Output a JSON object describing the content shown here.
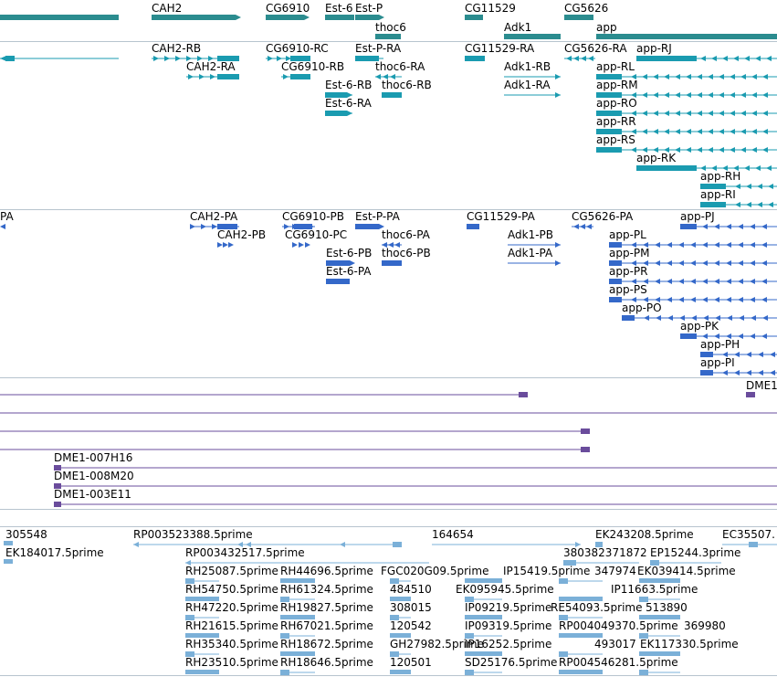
{
  "colors": {
    "gene": "#2b8c8f",
    "transcript": "#1a9bb0",
    "protein": "#3468c9",
    "clone": "#6a4c9c",
    "est": "#7bb0d8",
    "separator": "#b7c4ce"
  },
  "tracks": {
    "genes": {
      "labels": [
        "CAH2",
        "CG6910",
        "Est-6",
        "Est-P",
        "thoc6",
        "CG11529",
        "Adk1",
        "CG5626",
        "app"
      ]
    },
    "transcripts": {
      "labels": [
        "CAH2-RB",
        "CAH2-RA",
        "CG6910-RC",
        "CG6910-RB",
        "Est-P-RA",
        "thoc6-RA",
        "Est-6-RB",
        "thoc6-RB",
        "Est-6-RA",
        "CG11529-RA",
        "Adk1-RB",
        "Adk1-RA",
        "CG5626-RA",
        "app-RJ",
        "app-RL",
        "app-RM",
        "app-RO",
        "app-RR",
        "app-RS",
        "app-RK",
        "app-RH",
        "app-RI"
      ]
    },
    "proteins": {
      "labels": [
        "PA",
        "CAH2-PA",
        "CAH2-PB",
        "CG6910-PB",
        "CG6910-PC",
        "Est-P-PA",
        "thoc6-PA",
        "Est-6-PB",
        "thoc6-PB",
        "Est-6-PA",
        "CG11529-PA",
        "Adk1-PB",
        "Adk1-PA",
        "CG5626-PA",
        "app-PJ",
        "app-PL",
        "app-PM",
        "app-PR",
        "app-PS",
        "app-PO",
        "app-PK",
        "app-PH",
        "app-PI"
      ]
    },
    "clones": {
      "labels": [
        "DME1",
        "DME1-007H16",
        "DME1-008M20",
        "DME1-003E11"
      ]
    },
    "ests": {
      "labels": [
        "305548",
        "RP003523388.5prime",
        "164654",
        "EK243208.5prime",
        "EC35507.",
        "EK184017.5prime",
        "RP003432517.5prime",
        "380382371872",
        "EP15244.3prime",
        "RH25087.5prime",
        "RH44696.5prime",
        "FGC020G09.5prime",
        "IP15419.5prime",
        "347974",
        "EK039414.5prime",
        "RH54750.5prime",
        "RH61324.5prime",
        "484510",
        "EK095945.5prime",
        "IP11663.5prime",
        "RH47220.5prime",
        "RH19827.5prime",
        "308015",
        "IP09219.5prime",
        "RE54093.5prime",
        "513890",
        "RH21615.5prime",
        "RH67021.5prime",
        "120542",
        "IP09319.5prime",
        "RP004049370.5prime",
        "369980",
        "RH35340.5prime",
        "RH18672.5prime",
        "GH27982.5prime",
        "IP16252.5prime",
        "493017",
        "EK117330.5prime",
        "RH23510.5prime",
        "RH18646.5prime",
        "120501",
        "SD25176.5prime",
        "RP004546281.5prime"
      ]
    }
  }
}
